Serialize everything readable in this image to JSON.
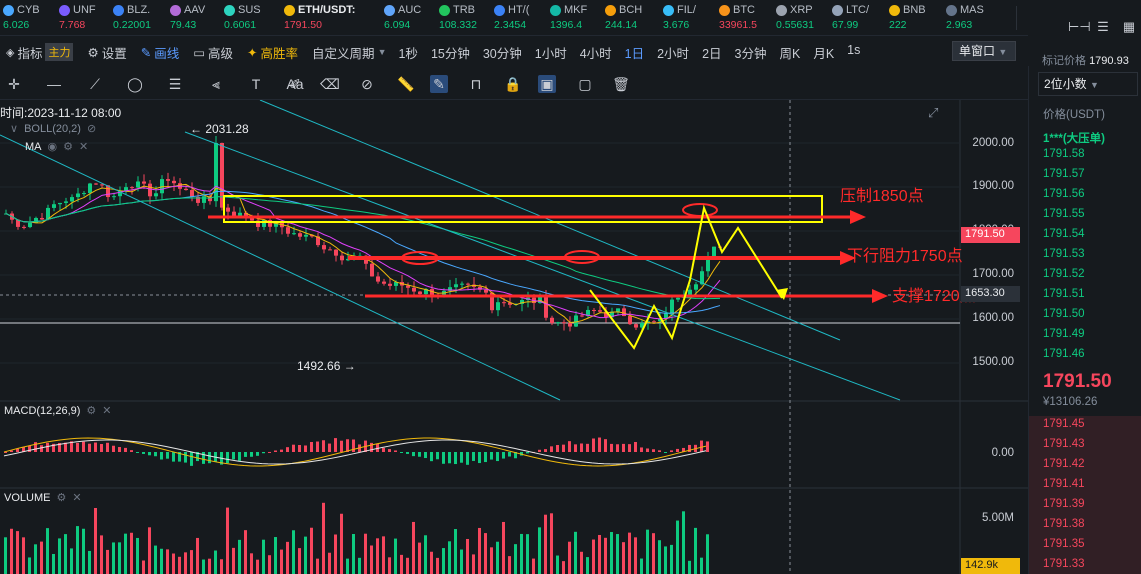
{
  "ticker": [
    {
      "symbol": "CYB",
      "price": "6.026",
      "dir": "up",
      "color": "#4aa8ff"
    },
    {
      "symbol": "UNF",
      "price": "7.768",
      "dir": "dn",
      "color": "#7a5cff"
    },
    {
      "symbol": "BLZ.",
      "price": "0.22001",
      "dir": "up",
      "color": "#3b82f6"
    },
    {
      "symbol": "AAV",
      "price": "79.43",
      "dir": "up",
      "color": "#b36bd8"
    },
    {
      "symbol": "SUS",
      "price": "0.6061",
      "dir": "up",
      "color": "#2dd4bf"
    },
    {
      "symbol": "ETH/USDT:",
      "price": "1791.50",
      "dir": "dn",
      "color": "#f0b90b",
      "active": true
    },
    {
      "symbol": "AUC",
      "price": "6.094",
      "dir": "up",
      "color": "#60a5fa"
    },
    {
      "symbol": "TRB",
      "price": "108.332",
      "dir": "up",
      "color": "#22c55e"
    },
    {
      "symbol": "HT/(",
      "price": "2.3454",
      "dir": "up",
      "color": "#3b82f6"
    },
    {
      "symbol": "MKF",
      "price": "1396.4",
      "dir": "up",
      "color": "#14b8a6"
    },
    {
      "symbol": "BCH",
      "price": "244.14",
      "dir": "up",
      "color": "#f59e0b"
    },
    {
      "symbol": "FIL/",
      "price": "3.676",
      "dir": "up",
      "color": "#38bdf8"
    },
    {
      "symbol": "BTC",
      "price": "33961.5",
      "dir": "dn",
      "color": "#f7931a"
    },
    {
      "symbol": "XRP",
      "price": "0.55631",
      "dir": "up",
      "color": "#9ca3af"
    },
    {
      "symbol": "LTC/",
      "price": "67.99",
      "dir": "up",
      "color": "#94a3b8"
    },
    {
      "symbol": "BNB",
      "price": "222",
      "dir": "up",
      "color": "#f0b90b"
    },
    {
      "symbol": "MAS",
      "price": "2.963",
      "dir": "up",
      "color": "#64748b"
    }
  ],
  "right_panel": {
    "mark_price_label": "标记价格",
    "mark_price_value": "1790.93",
    "decimals_select": "2位小数",
    "price_header": "价格(USDT)",
    "big_order": "1***(大压单)",
    "bids": [
      "1791.58",
      "1791.57",
      "1791.56",
      "1791.55",
      "1791.54",
      "1791.53",
      "1791.52",
      "1791.51",
      "1791.50",
      "1791.49",
      "1791.46"
    ],
    "last_price": "1791.50",
    "fiat_price": "¥13106.26",
    "asks": [
      "1791.45",
      "1791.43",
      "1791.42",
      "1791.41",
      "1791.39",
      "1791.38",
      "1791.35",
      "1791.33"
    ]
  },
  "toolbar": {
    "indicator": "指标",
    "main_badge": "主力",
    "settings": "设置",
    "draw": "画线",
    "advanced": "高级",
    "high_rate": "高胜率",
    "custom_period": "自定义周期",
    "periods": [
      "1秒",
      "15分钟",
      "30分钟",
      "1小时",
      "4小时",
      "1日",
      "2小时",
      "2日",
      "3分钟",
      "周K",
      "月K",
      "1s"
    ],
    "selected_period": "1日",
    "window_mode": "单窗口"
  },
  "drawing_tools": [
    "crosshair",
    "horizontal-line",
    "trend-line",
    "ellipse",
    "fib-lines",
    "text",
    "brush",
    "font",
    "ruler",
    "eraser-shape",
    "pencil",
    "magnet",
    "lock",
    "eye",
    "layers",
    "trash"
  ],
  "chart": {
    "time_label": "时间:2023-11-12 08:00",
    "boll_label": "BOLL(20,2)",
    "ma_label": "MA",
    "high_marker": "← 2031.28",
    "low_marker": "1492.66 →",
    "macd_label": "MACD(12,26,9)",
    "volume_label": "VOLUME",
    "y_ticks": [
      "2000.00",
      "1900.00",
      "1800.00",
      "1700.00",
      "1600.00",
      "1500.00"
    ],
    "price_tag": "1791.50",
    "cursor_tag": "1653.30",
    "macd_tick": "0.00",
    "vol_tick": "5.00M",
    "vol_tag": "142.9k",
    "annotations": {
      "resistance": "压制1850点",
      "down_resistance": "下行阻力1750点",
      "support": "支撑1720点"
    },
    "colors": {
      "up": "#0ecb81",
      "down": "#f6465d",
      "anno": "#ff2a2a",
      "box": "#ffff00",
      "channel": "#1fb8c4"
    }
  }
}
